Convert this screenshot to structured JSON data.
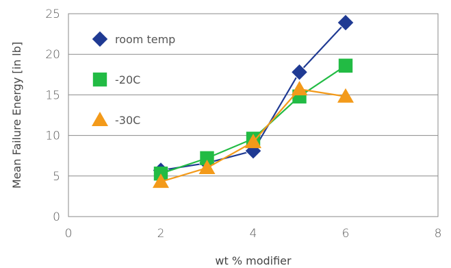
{
  "chart_data": {
    "type": "line",
    "title": "",
    "xlabel": "wt % modifier",
    "ylabel": "Mean Failure Energy [in lb]",
    "xlim": [
      0,
      8
    ],
    "ylim": [
      0,
      25
    ],
    "x_ticks": [
      "0",
      "2",
      "4",
      "6",
      "8"
    ],
    "y_ticks": [
      "0",
      "5",
      "10",
      "15",
      "20",
      "25"
    ],
    "grid": "horizontal",
    "legend_position": "top-left",
    "series": [
      {
        "name": "room temp",
        "marker": "diamond",
        "color": "#1f3a93",
        "points": [
          [
            2,
            5.7
          ],
          [
            3,
            6.6
          ],
          [
            4,
            8.1
          ],
          [
            5,
            17.8
          ],
          [
            6,
            23.9
          ]
        ]
      },
      {
        "name": "-20C",
        "marker": "square",
        "color": "#22bb44",
        "points": [
          [
            2,
            5.3
          ],
          [
            3,
            7.2
          ],
          [
            4,
            9.6
          ],
          [
            5,
            14.8
          ],
          [
            6,
            18.6
          ]
        ]
      },
      {
        "name": "-30C",
        "marker": "triangle",
        "color": "#f39a1a",
        "points": [
          [
            2,
            4.3
          ],
          [
            3,
            6.0
          ],
          [
            4,
            9.2
          ],
          [
            5,
            15.7
          ],
          [
            6,
            14.8
          ]
        ]
      }
    ]
  }
}
